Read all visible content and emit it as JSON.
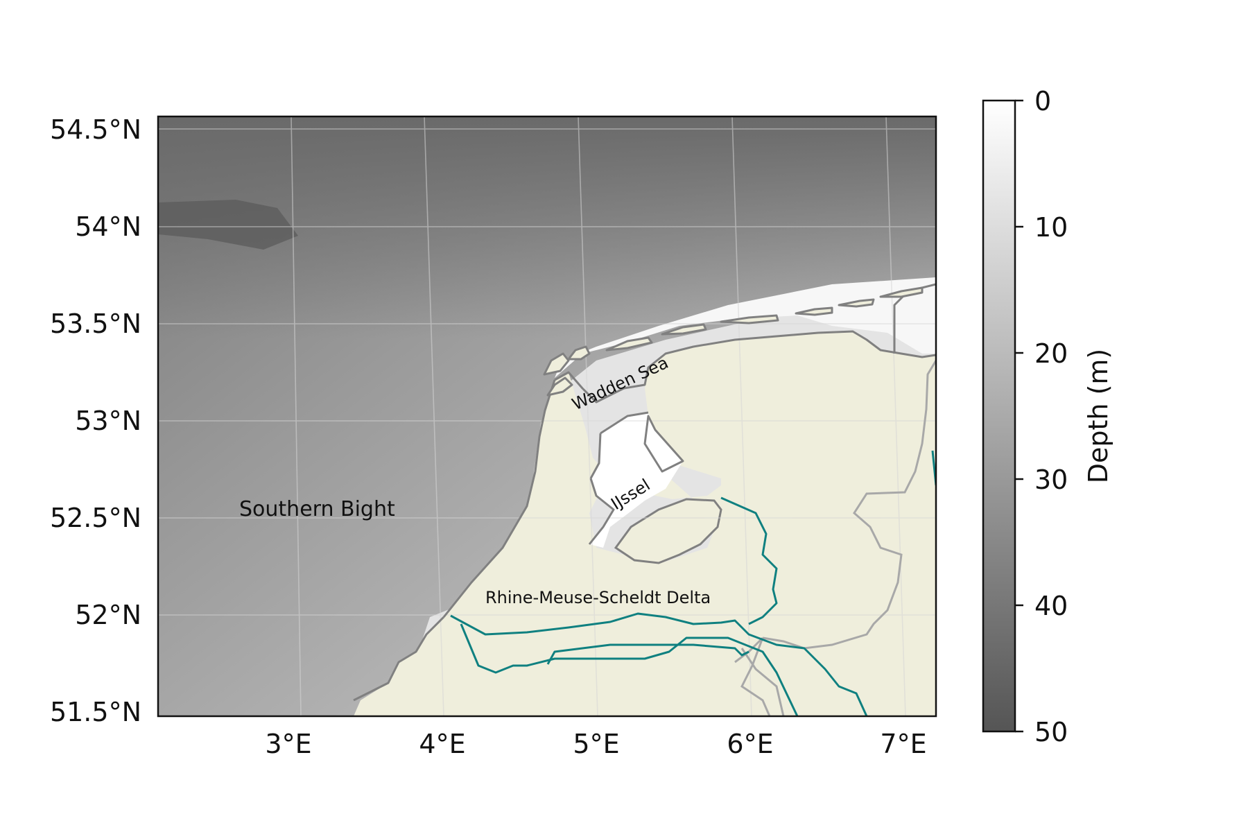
{
  "map": {
    "lon_ticks": [
      "3°E",
      "4°E",
      "5°E",
      "6°E",
      "7°E"
    ],
    "lat_ticks": [
      "54.5°N",
      "54°N",
      "53.5°N",
      "53°N",
      "52.5°N",
      "52°N",
      "51.5°N"
    ],
    "labels": {
      "southern_bight": "Southern Bight",
      "wadden_sea": "Wadden Sea",
      "ijssel": "IJssel",
      "delta": "Rhine-Meuse-Scheldt Delta"
    },
    "colors": {
      "land": "#efeedc",
      "coastline": "#808080",
      "border": "#a8a8a8",
      "river": "#0f8080",
      "shallow_water": "#ffffff",
      "deep_water": "#5a5a5a"
    }
  },
  "colorbar": {
    "label": "Depth (m)",
    "ticks": [
      "0",
      "10",
      "20",
      "30",
      "40",
      "50"
    ],
    "range": [
      0,
      50
    ],
    "colormap": "grey, white at 0 m to dark grey at 50 m"
  }
}
